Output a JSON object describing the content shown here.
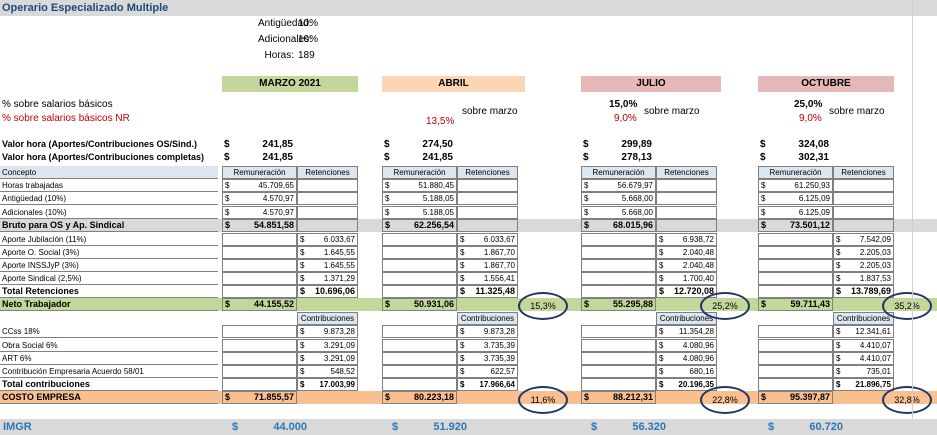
{
  "title": "Operario Especializado Multiple",
  "params": {
    "antiguedad_label": "Antigüedad:",
    "antiguedad_value": "10%",
    "adicionales_label": "Adicionales:",
    "adicionales_value": "10%",
    "horas_label": "Horas:",
    "horas_value": "189"
  },
  "headers": {
    "marzo": "MARZO 2021",
    "abril": "ABRIL",
    "julio": "JULIO",
    "octubre": "OCTUBRE"
  },
  "pct_labels": {
    "basicos": "% sobre salarios básicos",
    "basicos_nr": "% sobre salarios básicos NR"
  },
  "abril_pct": {
    "nr": "13,5%",
    "sobre": "sobre marzo"
  },
  "julio_pct": {
    "basicos": "15,0%",
    "nr": "9,0%",
    "sobre": "sobre marzo"
  },
  "octubre_pct": {
    "basicos": "25,0%",
    "nr": "9,0%",
    "sobre": "sobre marzo"
  },
  "valor_hora": {
    "label1": "Valor hora (Aportes/Contribuciones OS/Sind.)",
    "label2": "Valor hora (Aportes/Contribuciones completas)",
    "currency": "$",
    "marzo": [
      "241,85",
      "241,85"
    ],
    "abril": [
      "274,50",
      "241,85"
    ],
    "julio": [
      "299,89",
      "278,13"
    ],
    "octubre": [
      "324,08",
      "302,31"
    ]
  },
  "table": {
    "col_concepto": "Concepto",
    "col_remuneracion": "Remuneración",
    "col_retenciones": "Retenciones",
    "col_contribuciones": "Contribuciones",
    "rows_rem": [
      "Horas trabajadas",
      "Antigüedad (10%)",
      "Adicionales (10%)"
    ],
    "bruto_label": "Bruto para OS y Ap. Sindical",
    "rows_ret": [
      "Aporte Jubilación (11%)",
      "Aporte O. Social (3%)",
      "Aporte INSSJyP (3%)",
      "Aporte Sindical (2,5%)"
    ],
    "total_ret_label": "Total Retenciones",
    "neto_label": "Neto Trabajador",
    "rows_contrib": [
      "CCss 18%",
      "Obra Social 6%",
      "ART 6%",
      "Contribución Empresaria Acuerdo 58/01"
    ],
    "total_contrib_label": "Total contribuciones",
    "costo_label": "COSTO EMPRESA",
    "imgr_label": "IMGR"
  },
  "marzo": {
    "rem": [
      "45.709,65",
      "4.570,97",
      "4.570,97"
    ],
    "bruto": "54.851,58",
    "ret": [
      "6.033,67",
      "1.645,55",
      "1.645,55",
      "1.371,29"
    ],
    "total_ret": "10.696,06",
    "neto": "44.155,52",
    "contrib": [
      "9.873,28",
      "3.291,09",
      "3.291,09",
      "548,52"
    ],
    "total_contrib": "17.003,99",
    "costo": "71.855,57",
    "imgr": "44.000"
  },
  "abril": {
    "rem": [
      "51.880,45",
      "5.188,05",
      "5.188,05"
    ],
    "bruto": "62.256,54",
    "ret": [
      "6.033,67",
      "1.867,70",
      "1.867,70",
      "1.556,41"
    ],
    "total_ret": "11.325,48",
    "neto": "50.931,06",
    "neto_pct": "15,3%",
    "contrib": [
      "9.873,28",
      "3.735,39",
      "3.735,39",
      "622,57"
    ],
    "total_contrib": "17.966,64",
    "costo": "80.223,18",
    "costo_pct": "11,6%",
    "imgr": "51.920"
  },
  "julio": {
    "rem": [
      "56.679,97",
      "5.668,00",
      "5.668,00"
    ],
    "bruto": "68.015,96",
    "ret": [
      "6.938,72",
      "2.040,48",
      "2.040,48",
      "1.700,40"
    ],
    "total_ret": "12.720,08",
    "neto": "55.295,88",
    "neto_pct": "25,2%",
    "contrib": [
      "11.354,28",
      "4.080,96",
      "4.080,96",
      "680,16"
    ],
    "total_contrib": "20.196,35",
    "costo": "88.212,31",
    "costo_pct": "22,8%",
    "imgr": "56.320"
  },
  "octubre": {
    "rem": [
      "61.250,93",
      "6.125,09",
      "6.125,09"
    ],
    "bruto": "73.501,12",
    "ret": [
      "7.542,09",
      "2.205,03",
      "2.205,03",
      "1.837,53"
    ],
    "total_ret": "13.789,69",
    "neto": "59.711,43",
    "neto_pct": "35,2%",
    "contrib": [
      "12.341,61",
      "4.410,07",
      "4.410,07",
      "735,01"
    ],
    "total_contrib": "21.896,75",
    "costo": "95.397,87",
    "costo_pct": "32,8%",
    "imgr": "60.720"
  },
  "currency": "$"
}
